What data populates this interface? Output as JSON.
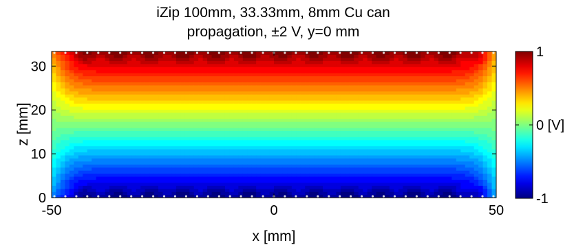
{
  "chart_data": {
    "type": "heatmap",
    "title": [
      "iZip 100mm, 33.33mm, 8mm Cu can",
      "propagation, ±2 V, y=0 mm"
    ],
    "xlabel": "x [mm]",
    "ylabel": "z [mm]",
    "xlim": [
      -50,
      50
    ],
    "ylim": [
      0,
      33.33
    ],
    "x_ticks": [
      -50,
      0,
      50
    ],
    "y_ticks": [
      0,
      10,
      20,
      30
    ],
    "colorbar": {
      "colormap": "jet",
      "range": [
        -1,
        1
      ],
      "ticks": [
        1,
        0,
        -1
      ],
      "tick_labels": [
        "1",
        "0 [V]",
        "-1"
      ]
    },
    "field": {
      "quantity": "electric potential",
      "top_electrode_volts": 1,
      "bottom_electrode_volts": -1,
      "side_boundary_volts": 0,
      "center_profile": [
        {
          "z": 0,
          "v": -1.0
        },
        {
          "z": 3,
          "v": -0.72
        },
        {
          "z": 8,
          "v": -0.42
        },
        {
          "z": 12,
          "v": -0.15
        },
        {
          "z": 16.67,
          "v": 0.0
        },
        {
          "z": 21,
          "v": 0.15
        },
        {
          "z": 25,
          "v": 0.42
        },
        {
          "z": 30,
          "v": 0.72
        },
        {
          "z": 33.33,
          "v": 1.0
        }
      ]
    }
  }
}
